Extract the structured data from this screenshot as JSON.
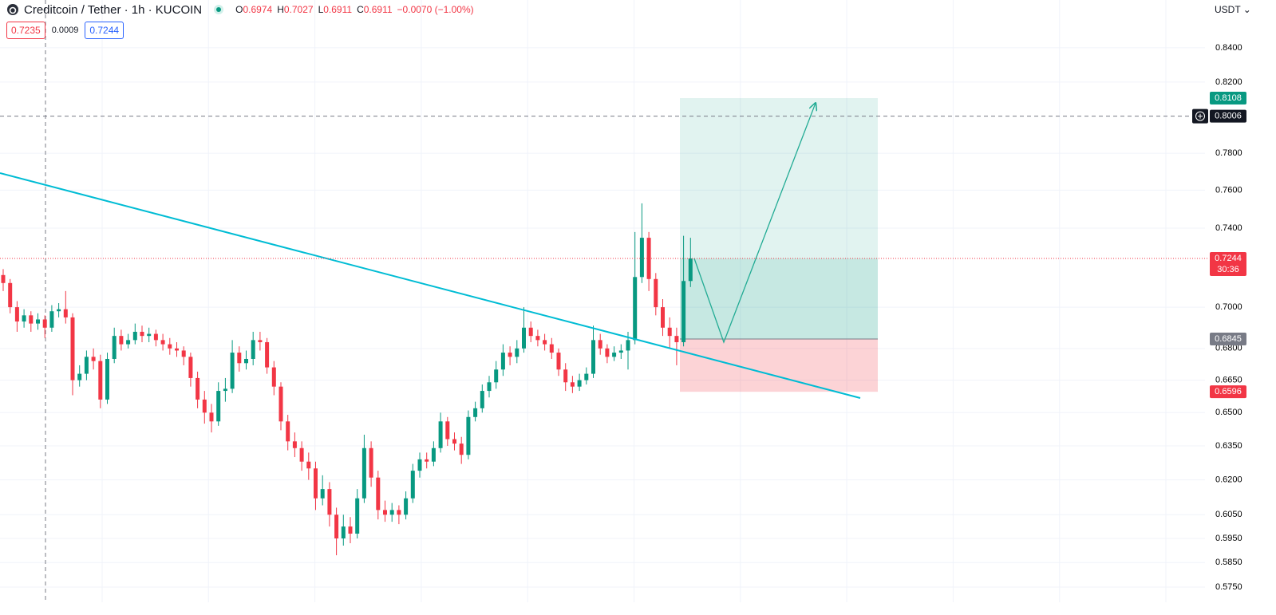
{
  "chart_data": {
    "type": "candlestick",
    "title": "Creditcoin / Tether · 1h · KUCOIN",
    "ohlc": [
      {
        "label": "O",
        "value": "0.6974"
      },
      {
        "label": "H",
        "value": "0.7027"
      },
      {
        "label": "L",
        "value": "0.6911"
      },
      {
        "label": "C",
        "value": "0.6911"
      }
    ],
    "change": "−0.0070 (−1.00%)",
    "change_color": "#f23645",
    "sell_price": "0.7235",
    "spread": "0.0009",
    "buy_price": "0.7244",
    "currency": "USDT",
    "log_scale": true,
    "grid": true,
    "up_color": "#089981",
    "down_color": "#f23645",
    "ylim": [
      0.5689,
      0.8687
    ],
    "yticks": [
      {
        "value": 0.84,
        "label": "0.8400"
      },
      {
        "value": 0.82,
        "label": "0.8200"
      },
      {
        "value": 0.78,
        "label": "0.7800"
      },
      {
        "value": 0.76,
        "label": "0.7600"
      },
      {
        "value": 0.74,
        "label": "0.7400"
      },
      {
        "value": 0.7,
        "label": "0.7000"
      },
      {
        "value": 0.68,
        "label": "0.6800"
      },
      {
        "value": 0.665,
        "label": "0.6650"
      },
      {
        "value": 0.65,
        "label": "0.6500"
      },
      {
        "value": 0.635,
        "label": "0.6350"
      },
      {
        "value": 0.62,
        "label": "0.6200"
      },
      {
        "value": 0.605,
        "label": "0.6050"
      },
      {
        "value": 0.595,
        "label": "0.5950"
      },
      {
        "value": 0.585,
        "label": "0.5850"
      },
      {
        "value": 0.575,
        "label": "0.5750"
      }
    ],
    "price_markers": [
      {
        "value": 0.8108,
        "color": "#089981"
      },
      {
        "value": 0.8006,
        "color": "#131722"
      },
      {
        "value": 0.7244,
        "color": "#f23645",
        "countdown": "30:36"
      },
      {
        "value": 0.6845,
        "color": "#787b86"
      },
      {
        "value": 0.6596,
        "color": "#f23645"
      }
    ],
    "trendline": [
      0.7692,
      0.6567
    ],
    "projection": [
      0.7244,
      0.683,
      0.808
    ],
    "candles": [
      [
        0.716,
        0.719,
        0.708,
        0.712
      ],
      [
        0.712,
        0.714,
        0.697,
        0.7
      ],
      [
        0.7,
        0.703,
        0.688,
        0.693
      ],
      [
        0.693,
        0.699,
        0.69,
        0.696
      ],
      [
        0.696,
        0.698,
        0.688,
        0.692
      ],
      [
        0.692,
        0.697,
        0.689,
        0.694
      ],
      [
        0.694,
        0.696,
        0.685,
        0.69
      ],
      [
        0.69,
        0.701,
        0.688,
        0.698
      ],
      [
        0.698,
        0.702,
        0.695,
        0.699
      ],
      [
        0.699,
        0.708,
        0.692,
        0.695
      ],
      [
        0.695,
        0.697,
        0.658,
        0.665
      ],
      [
        0.665,
        0.672,
        0.662,
        0.668
      ],
      [
        0.668,
        0.679,
        0.665,
        0.676
      ],
      [
        0.676,
        0.68,
        0.67,
        0.674
      ],
      [
        0.674,
        0.677,
        0.652,
        0.656
      ],
      [
        0.656,
        0.678,
        0.654,
        0.675
      ],
      [
        0.675,
        0.69,
        0.673,
        0.686
      ],
      [
        0.686,
        0.689,
        0.679,
        0.682
      ],
      [
        0.682,
        0.687,
        0.68,
        0.684
      ],
      [
        0.684,
        0.692,
        0.682,
        0.688
      ],
      [
        0.688,
        0.691,
        0.683,
        0.686
      ],
      [
        0.686,
        0.69,
        0.683,
        0.687
      ],
      [
        0.687,
        0.689,
        0.681,
        0.684
      ],
      [
        0.684,
        0.687,
        0.679,
        0.682
      ],
      [
        0.682,
        0.685,
        0.677,
        0.68
      ],
      [
        0.68,
        0.683,
        0.676,
        0.679
      ],
      [
        0.679,
        0.681,
        0.672,
        0.676
      ],
      [
        0.676,
        0.678,
        0.662,
        0.666
      ],
      [
        0.666,
        0.669,
        0.652,
        0.656
      ],
      [
        0.656,
        0.66,
        0.645,
        0.65
      ],
      [
        0.65,
        0.654,
        0.641,
        0.646
      ],
      [
        0.646,
        0.664,
        0.644,
        0.66
      ],
      [
        0.66,
        0.666,
        0.655,
        0.661
      ],
      [
        0.661,
        0.684,
        0.659,
        0.678
      ],
      [
        0.678,
        0.681,
        0.669,
        0.673
      ],
      [
        0.673,
        0.679,
        0.67,
        0.675
      ],
      [
        0.675,
        0.688,
        0.672,
        0.684
      ],
      [
        0.684,
        0.688,
        0.679,
        0.683
      ],
      [
        0.683,
        0.685,
        0.668,
        0.671
      ],
      [
        0.671,
        0.674,
        0.658,
        0.662
      ],
      [
        0.662,
        0.664,
        0.642,
        0.646
      ],
      [
        0.646,
        0.649,
        0.633,
        0.637
      ],
      [
        0.637,
        0.641,
        0.63,
        0.634
      ],
      [
        0.634,
        0.637,
        0.624,
        0.628
      ],
      [
        0.628,
        0.632,
        0.62,
        0.625
      ],
      [
        0.625,
        0.628,
        0.607,
        0.612
      ],
      [
        0.612,
        0.622,
        0.609,
        0.616
      ],
      [
        0.616,
        0.619,
        0.6,
        0.605
      ],
      [
        0.605,
        0.608,
        0.588,
        0.595
      ],
      [
        0.595,
        0.605,
        0.592,
        0.6
      ],
      [
        0.6,
        0.604,
        0.593,
        0.597
      ],
      [
        0.597,
        0.616,
        0.595,
        0.612
      ],
      [
        0.612,
        0.64,
        0.61,
        0.634
      ],
      [
        0.634,
        0.637,
        0.617,
        0.621
      ],
      [
        0.621,
        0.624,
        0.603,
        0.607
      ],
      [
        0.607,
        0.611,
        0.602,
        0.605
      ],
      [
        0.605,
        0.61,
        0.602,
        0.607
      ],
      [
        0.607,
        0.609,
        0.601,
        0.605
      ],
      [
        0.605,
        0.615,
        0.603,
        0.612
      ],
      [
        0.612,
        0.627,
        0.61,
        0.624
      ],
      [
        0.624,
        0.632,
        0.621,
        0.629
      ],
      [
        0.629,
        0.632,
        0.625,
        0.628
      ],
      [
        0.628,
        0.637,
        0.626,
        0.634
      ],
      [
        0.634,
        0.65,
        0.632,
        0.646
      ],
      [
        0.646,
        0.648,
        0.635,
        0.638
      ],
      [
        0.638,
        0.641,
        0.633,
        0.636
      ],
      [
        0.636,
        0.639,
        0.627,
        0.631
      ],
      [
        0.631,
        0.651,
        0.629,
        0.648
      ],
      [
        0.648,
        0.655,
        0.646,
        0.652
      ],
      [
        0.652,
        0.663,
        0.65,
        0.66
      ],
      [
        0.66,
        0.667,
        0.657,
        0.664
      ],
      [
        0.664,
        0.674,
        0.661,
        0.67
      ],
      [
        0.67,
        0.682,
        0.667,
        0.678
      ],
      [
        0.678,
        0.681,
        0.672,
        0.676
      ],
      [
        0.676,
        0.684,
        0.673,
        0.68
      ],
      [
        0.68,
        0.7,
        0.678,
        0.69
      ],
      [
        0.69,
        0.693,
        0.683,
        0.686
      ],
      [
        0.686,
        0.689,
        0.681,
        0.684
      ],
      [
        0.684,
        0.687,
        0.679,
        0.682
      ],
      [
        0.682,
        0.685,
        0.675,
        0.678
      ],
      [
        0.678,
        0.68,
        0.667,
        0.67
      ],
      [
        0.67,
        0.673,
        0.66,
        0.664
      ],
      [
        0.664,
        0.667,
        0.659,
        0.662
      ],
      [
        0.662,
        0.668,
        0.66,
        0.665
      ],
      [
        0.665,
        0.671,
        0.663,
        0.668
      ],
      [
        0.668,
        0.691,
        0.666,
        0.684
      ],
      [
        0.684,
        0.687,
        0.677,
        0.68
      ],
      [
        0.68,
        0.682,
        0.673,
        0.676
      ],
      [
        0.676,
        0.681,
        0.674,
        0.678
      ],
      [
        0.678,
        0.682,
        0.675,
        0.679
      ],
      [
        0.679,
        0.688,
        0.67,
        0.684
      ],
      [
        0.684,
        0.738,
        0.682,
        0.715
      ],
      [
        0.715,
        0.753,
        0.712,
        0.735
      ],
      [
        0.735,
        0.738,
        0.708,
        0.714
      ],
      [
        0.714,
        0.717,
        0.696,
        0.7
      ],
      [
        0.7,
        0.704,
        0.686,
        0.69
      ],
      [
        0.69,
        0.695,
        0.68,
        0.686
      ],
      [
        0.686,
        0.69,
        0.672,
        0.683
      ],
      [
        0.683,
        0.736,
        0.681,
        0.713
      ],
      [
        0.713,
        0.735,
        0.71,
        0.7244
      ]
    ]
  }
}
